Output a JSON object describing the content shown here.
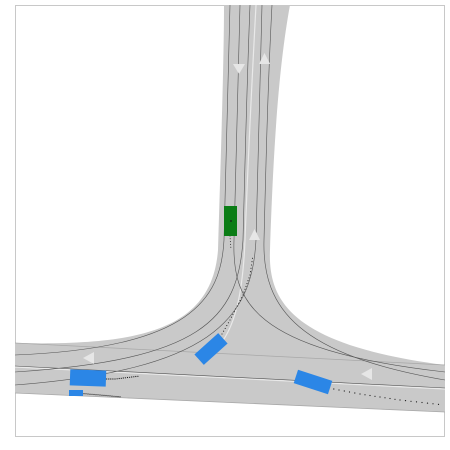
{
  "scene": {
    "background_color": "#ffffff",
    "frame_color": "#c8c8c8",
    "road_color": "#c9c9c9",
    "road_edge_color": "#a8a8a8",
    "lane_divider_color": "#e9e9e9",
    "lane_path_color": "#555555",
    "arrow_color": "#e6e6e6"
  },
  "vehicles": {
    "ego": {
      "type": "ego-vehicle",
      "color": "#0b7d16"
    },
    "others": [
      {
        "id": "left-upper",
        "color": "#2b86e6"
      },
      {
        "id": "left-lower",
        "color": "#2b86e6"
      },
      {
        "id": "center-merging",
        "color": "#2b86e6"
      },
      {
        "id": "right-approaching",
        "color": "#2b86e6"
      }
    ]
  },
  "trajectory": {
    "dot_color": "#1a1a1a"
  }
}
